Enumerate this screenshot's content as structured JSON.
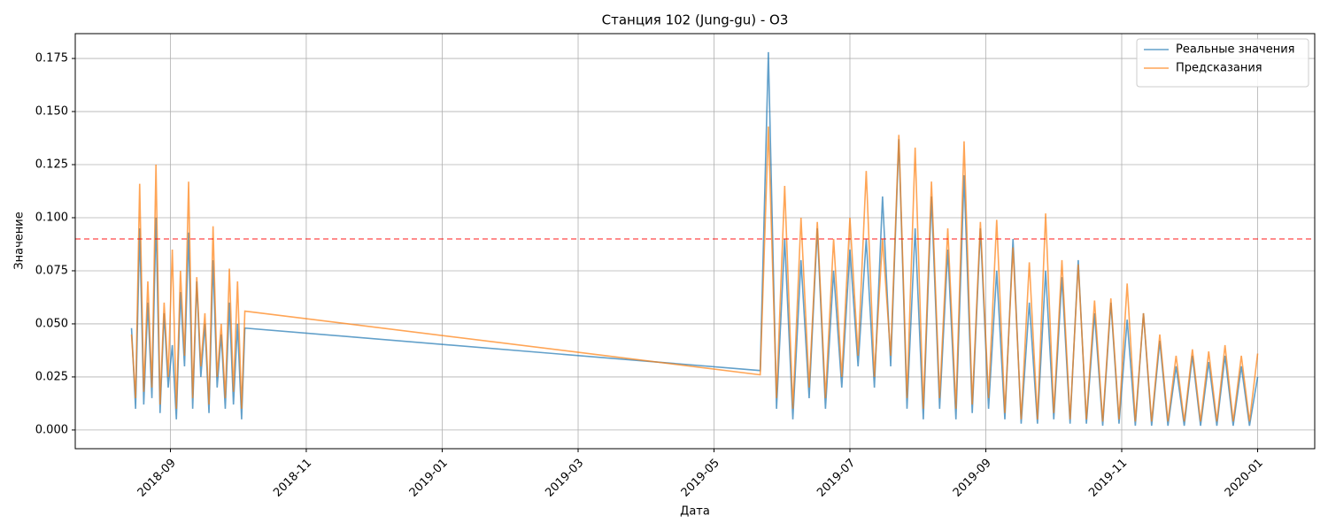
{
  "chart_data": {
    "type": "line",
    "title": "Станция 102 (Jung-gu) - O3",
    "xlabel": "Дата",
    "ylabel": "Значение",
    "x": [
      2018.619,
      2018.624,
      2018.629,
      2018.634,
      2018.639,
      2018.644,
      2018.649,
      2018.654,
      2018.659,
      2018.664,
      2018.669,
      2018.674,
      2018.679,
      2018.684,
      2018.689,
      2018.694,
      2018.699,
      2018.704,
      2018.709,
      2018.714,
      2018.719,
      2018.724,
      2018.729,
      2018.734,
      2018.739,
      2018.744,
      2018.749,
      2018.754,
      2018.758,
      2019.39,
      2019.4,
      2019.41,
      2019.42,
      2019.43,
      2019.44,
      2019.45,
      2019.46,
      2019.47,
      2019.48,
      2019.49,
      2019.5,
      2019.51,
      2019.52,
      2019.53,
      2019.54,
      2019.55,
      2019.56,
      2019.57,
      2019.58,
      2019.59,
      2019.6,
      2019.61,
      2019.62,
      2019.63,
      2019.64,
      2019.65,
      2019.66,
      2019.67,
      2019.68,
      2019.69,
      2019.7,
      2019.71,
      2019.72,
      2019.73,
      2019.74,
      2019.75,
      2019.76,
      2019.77,
      2019.78,
      2019.79,
      2019.8,
      2019.81,
      2019.82,
      2019.83,
      2019.84,
      2019.85,
      2019.86,
      2019.87,
      2019.88,
      2019.89,
      2019.9,
      2019.91,
      2019.92,
      2019.93,
      2019.94,
      2019.95,
      2019.96,
      2019.97,
      2019.98,
      2019.99,
      2020.0
    ],
    "series": [
      {
        "name": "Реальные значения",
        "color": "#1f77b4",
        "values": [
          0.048,
          0.01,
          0.095,
          0.012,
          0.06,
          0.015,
          0.1,
          0.008,
          0.055,
          0.02,
          0.04,
          0.005,
          0.065,
          0.03,
          0.093,
          0.01,
          0.07,
          0.025,
          0.05,
          0.008,
          0.08,
          0.02,
          0.045,
          0.01,
          0.06,
          0.012,
          0.05,
          0.005,
          0.048,
          0.028,
          0.178,
          0.01,
          0.09,
          0.005,
          0.08,
          0.015,
          0.095,
          0.01,
          0.075,
          0.02,
          0.085,
          0.03,
          0.09,
          0.02,
          0.11,
          0.03,
          0.137,
          0.01,
          0.095,
          0.005,
          0.11,
          0.01,
          0.085,
          0.005,
          0.12,
          0.008,
          0.095,
          0.01,
          0.075,
          0.005,
          0.09,
          0.003,
          0.06,
          0.003,
          0.075,
          0.005,
          0.072,
          0.003,
          0.08,
          0.003,
          0.055,
          0.002,
          0.06,
          0.003,
          0.052,
          0.002,
          0.055,
          0.002,
          0.042,
          0.002,
          0.03,
          0.002,
          0.035,
          0.002,
          0.032,
          0.002,
          0.035,
          0.002,
          0.03,
          0.002,
          0.025
        ]
      },
      {
        "name": "Предсказания",
        "color": "#ff7f0e",
        "values": [
          0.045,
          0.015,
          0.116,
          0.018,
          0.07,
          0.02,
          0.125,
          0.012,
          0.06,
          0.025,
          0.085,
          0.01,
          0.075,
          0.035,
          0.117,
          0.015,
          0.072,
          0.03,
          0.055,
          0.012,
          0.096,
          0.025,
          0.05,
          0.015,
          0.076,
          0.018,
          0.07,
          0.01,
          0.056,
          0.026,
          0.143,
          0.015,
          0.115,
          0.01,
          0.1,
          0.02,
          0.098,
          0.015,
          0.09,
          0.025,
          0.1,
          0.035,
          0.122,
          0.025,
          0.09,
          0.035,
          0.139,
          0.015,
          0.133,
          0.01,
          0.117,
          0.015,
          0.095,
          0.01,
          0.136,
          0.012,
          0.098,
          0.015,
          0.099,
          0.008,
          0.086,
          0.005,
          0.079,
          0.005,
          0.102,
          0.008,
          0.08,
          0.005,
          0.078,
          0.005,
          0.061,
          0.004,
          0.062,
          0.005,
          0.069,
          0.004,
          0.055,
          0.004,
          0.045,
          0.004,
          0.035,
          0.004,
          0.038,
          0.004,
          0.037,
          0.004,
          0.04,
          0.004,
          0.035,
          0.004,
          0.036
        ]
      }
    ],
    "threshold": 0.09,
    "threshold_color": "#ff0000",
    "xlim": [
      2018.55,
      2020.07
    ],
    "ylim": [
      -0.0088,
      0.1867
    ],
    "xticks": [
      {
        "value": 2018.6667,
        "label": "2018-09"
      },
      {
        "value": 2018.8333,
        "label": "2018-11"
      },
      {
        "value": 2019.0,
        "label": "2019-01"
      },
      {
        "value": 2019.1667,
        "label": "2019-03"
      },
      {
        "value": 2019.3333,
        "label": "2019-05"
      },
      {
        "value": 2019.5,
        "label": "2019-07"
      },
      {
        "value": 2019.6667,
        "label": "2019-09"
      },
      {
        "value": 2019.8333,
        "label": "2019-11"
      },
      {
        "value": 2020.0,
        "label": "2020-01"
      }
    ],
    "yticks": [
      {
        "value": 0,
        "label": "0.000"
      },
      {
        "value": 0.025,
        "label": "0.025"
      },
      {
        "value": 0.05,
        "label": "0.050"
      },
      {
        "value": 0.075,
        "label": "0.075"
      },
      {
        "value": 0.1,
        "label": "0.100"
      },
      {
        "value": 0.125,
        "label": "0.125"
      },
      {
        "value": 0.15,
        "label": "0.150"
      },
      {
        "value": 0.175,
        "label": "0.175"
      }
    ],
    "grid": true,
    "legend": "upper right"
  }
}
